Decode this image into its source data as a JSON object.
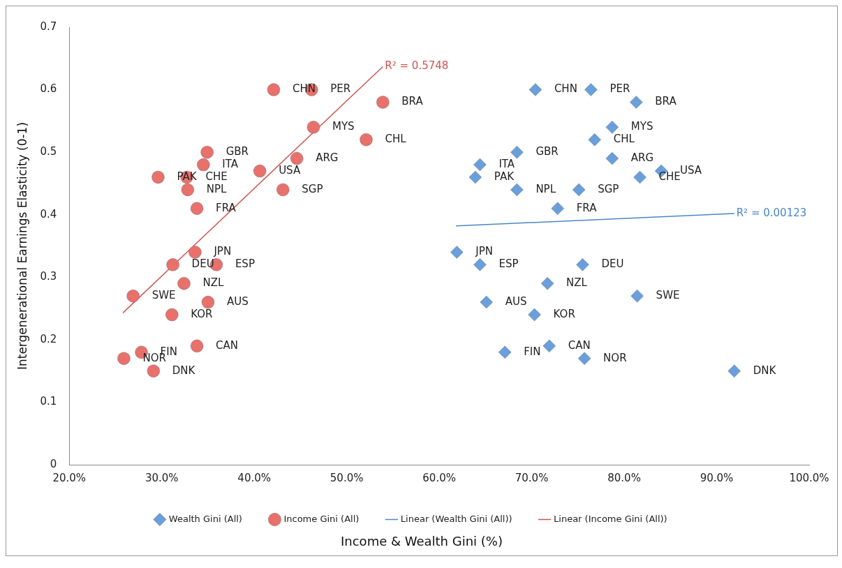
{
  "chart_data": {
    "type": "scatter",
    "xlabel": "Income & Wealth Gini (%)",
    "ylabel": "Intergenerational Earnings Elasticity (0-1)",
    "xlim": [
      20,
      100
    ],
    "ylim": [
      0,
      0.7
    ],
    "xticks": [
      {
        "value": 20,
        "label": "20.0%"
      },
      {
        "value": 30,
        "label": "30.0%"
      },
      {
        "value": 40,
        "label": "40.0%"
      },
      {
        "value": 50,
        "label": "50.0%"
      },
      {
        "value": 60,
        "label": "60.0%"
      },
      {
        "value": 70,
        "label": "70.0%"
      },
      {
        "value": 80,
        "label": "80.0%"
      },
      {
        "value": 90,
        "label": "90.0%"
      },
      {
        "value": 100,
        "label": "100.0%"
      }
    ],
    "yticks": [
      0,
      0.1,
      0.2,
      0.3,
      0.4,
      0.5,
      0.6,
      0.7
    ],
    "grid": false,
    "legend": "bottom",
    "annotations": [
      {
        "text": "R² = 0.00123",
        "x": 91.9,
        "y": 0.402
      },
      {
        "text": "R² = 0.5748",
        "x": 53.9,
        "y": 0.637
      }
    ],
    "series": [
      {
        "name": "Wealth Gini (All)",
        "marker": "diamond",
        "color": "#6a9fdc",
        "x": [
          70.4,
          76.4,
          81.3,
          78.7,
          76.8,
          68.4,
          64.4,
          63.9,
          78.7,
          84.0,
          81.7,
          68.4,
          75.1,
          72.8,
          61.9,
          64.4,
          75.5,
          71.7,
          81.4,
          65.1,
          70.3,
          67.1,
          71.9,
          75.7,
          91.9
        ],
        "values": [
          0.6,
          0.6,
          0.58,
          0.54,
          0.52,
          0.5,
          0.48,
          0.46,
          0.49,
          0.47,
          0.46,
          0.44,
          0.44,
          0.41,
          0.34,
          0.32,
          0.32,
          0.29,
          0.27,
          0.26,
          0.24,
          0.18,
          0.19,
          0.17,
          0.15
        ],
        "value_labels": [
          "CHN",
          "PER",
          "BRA",
          "MYS",
          "CHL",
          "GBR",
          "ITA",
          "PAK",
          "ARG",
          "USA",
          "CHE",
          "NPL",
          "SGP",
          "FRA",
          "JPN",
          "ESP",
          "DEU",
          "NZL",
          "SWE",
          "AUS",
          "KOR",
          "FIN",
          "CAN",
          "NOR",
          "DNK"
        ]
      },
      {
        "name": "Income Gini (All)",
        "marker": "circle",
        "color": "#e8716c",
        "x": [
          42.1,
          46.2,
          53.9,
          46.4,
          52.1,
          34.9,
          34.5,
          29.6,
          32.7,
          32.8,
          33.8,
          40.6,
          44.6,
          43.1,
          33.6,
          31.2,
          35.9,
          32.4,
          26.9,
          35.0,
          31.1,
          33.8,
          27.8,
          25.9,
          29.1
        ],
        "values": [
          0.6,
          0.6,
          0.58,
          0.54,
          0.52,
          0.5,
          0.48,
          0.46,
          0.46,
          0.44,
          0.41,
          0.47,
          0.49,
          0.44,
          0.34,
          0.32,
          0.32,
          0.29,
          0.27,
          0.26,
          0.24,
          0.19,
          0.18,
          0.17,
          0.15
        ],
        "value_labels": [
          "CHN",
          "PER",
          "BRA",
          "MYS",
          "CHL",
          "GBR",
          "ITA",
          "PAK",
          "CHE",
          "NPL",
          "FRA",
          "USA",
          "ARG",
          "SGP",
          "JPN",
          "DEU",
          "ESP",
          "NZL",
          "SWE",
          "AUS",
          "KOR",
          "CAN",
          "FIN",
          "NOR",
          "DNK"
        ]
      },
      {
        "name": "Linear (Wealth Gini (All))",
        "type": "line",
        "marker": "none",
        "line_style": "solid",
        "color": "#4a86c8",
        "x": [
          61.8,
          91.9
        ],
        "values": [
          0.382,
          0.402
        ]
      },
      {
        "name": "Linear (Income Gini (All))",
        "type": "line",
        "marker": "none",
        "line_style": "solid",
        "color": "#d0534c",
        "x": [
          25.8,
          53.9
        ],
        "values": [
          0.243,
          0.637
        ]
      }
    ]
  }
}
